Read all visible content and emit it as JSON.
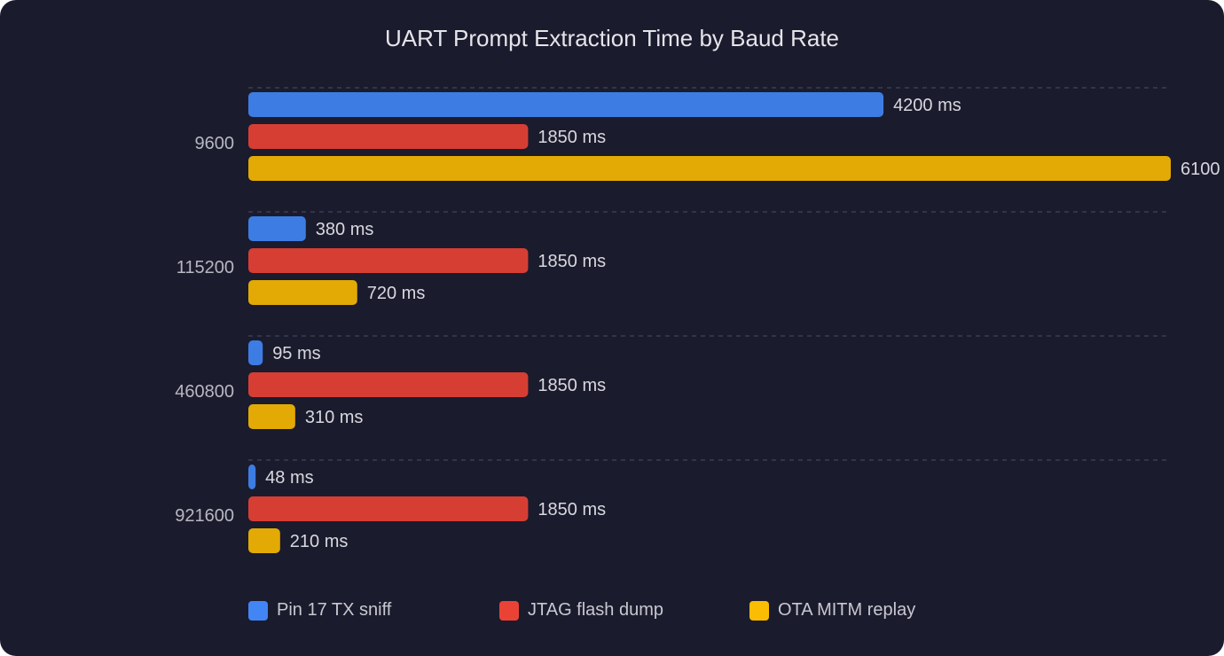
{
  "chart_data": {
    "type": "bar",
    "orientation": "horizontal",
    "title": "UART Prompt Extraction Time by Baud Rate",
    "categories": [
      "9600",
      "115200",
      "460800",
      "921600"
    ],
    "series": [
      {
        "name": "Pin 17 TX sniff",
        "color": "#4285f4",
        "values": [
          4200,
          380,
          95,
          48
        ]
      },
      {
        "name": "JTAG flash dump",
        "color": "#ea4335",
        "values": [
          1850,
          1850,
          1850,
          1850
        ]
      },
      {
        "name": "OTA MITM replay",
        "color": "#fbbc04",
        "values": [
          6100,
          720,
          310,
          210
        ]
      }
    ],
    "value_suffix": " ms",
    "xlim": [
      0,
      6100
    ],
    "grid": true,
    "legend": "bottom"
  }
}
